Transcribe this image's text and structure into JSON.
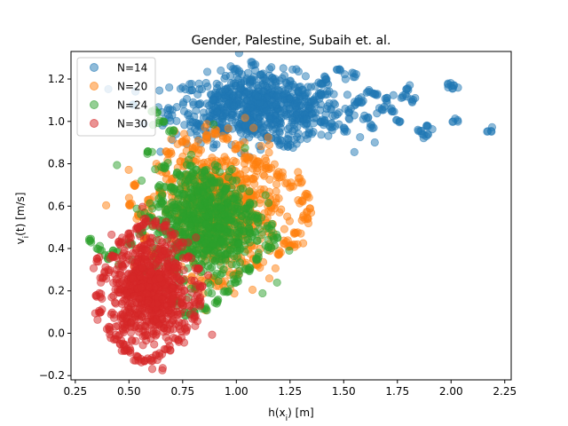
{
  "chart_data": {
    "type": "scatter",
    "title": "Gender, Palestine, Subaih et. al.",
    "xlabel": "h(x_i) [m]",
    "ylabel": "v_i(t) [m/s]",
    "xlim": [
      0.23,
      2.28
    ],
    "ylim": [
      -0.22,
      1.33
    ],
    "xticks": [
      0.25,
      0.5,
      0.75,
      1.0,
      1.25,
      1.5,
      1.75,
      2.0,
      2.25
    ],
    "xtick_labels": [
      "0.25",
      "0.50",
      "0.75",
      "1.00",
      "1.25",
      "1.50",
      "1.75",
      "2.00",
      "2.25"
    ],
    "yticks": [
      -0.2,
      0.0,
      0.2,
      0.4,
      0.6,
      0.8,
      1.0,
      1.2
    ],
    "ytick_labels": [
      "−0.2",
      "0.0",
      "0.2",
      "0.4",
      "0.6",
      "0.8",
      "1.0",
      "1.2"
    ],
    "grid": false,
    "legend_position": "top-left",
    "series": [
      {
        "name": "N=14",
        "color": "#1f77b4",
        "center": [
          1.1,
          1.06
        ],
        "spread": [
          0.2,
          0.08
        ],
        "points": [
          [
            0.83,
            0.98
          ],
          [
            0.9,
            1.1
          ],
          [
            0.95,
            1.15
          ],
          [
            1.0,
            1.25
          ],
          [
            1.05,
            1.2
          ],
          [
            1.12,
            1.22
          ],
          [
            1.18,
            1.2
          ],
          [
            1.25,
            1.18
          ],
          [
            1.3,
            1.14
          ],
          [
            1.38,
            1.12
          ],
          [
            1.42,
            1.2
          ],
          [
            1.48,
            1.24
          ],
          [
            1.55,
            1.22
          ],
          [
            1.58,
            1.1
          ],
          [
            1.6,
            1.02
          ],
          [
            1.63,
            0.98
          ],
          [
            1.7,
            1.1
          ],
          [
            1.72,
            1.05
          ],
          [
            1.75,
            1.0
          ],
          [
            1.8,
            1.16
          ],
          [
            1.82,
            1.1
          ],
          [
            1.86,
            0.95
          ],
          [
            1.88,
            0.93
          ],
          [
            1.9,
            0.97
          ],
          [
            2.0,
            1.17
          ],
          [
            2.02,
            1.16
          ],
          [
            2.02,
            1.01
          ],
          [
            2.18,
            0.96
          ],
          [
            1.45,
            0.98
          ],
          [
            1.5,
            0.96
          ],
          [
            1.35,
            0.95
          ],
          [
            1.4,
            1.0
          ],
          [
            1.2,
            0.9
          ],
          [
            1.25,
            0.88
          ],
          [
            1.15,
            0.92
          ],
          [
            1.05,
            0.98
          ],
          [
            1.1,
            1.12
          ],
          [
            1.0,
            1.08
          ],
          [
            0.92,
            1.05
          ],
          [
            0.88,
            1.0
          ],
          [
            1.28,
            1.08
          ],
          [
            1.65,
            1.12
          ],
          [
            1.68,
            1.06
          ],
          [
            1.78,
            1.12
          ],
          [
            1.52,
            1.05
          ],
          [
            1.62,
            1.14
          ],
          [
            1.32,
            1.0
          ],
          [
            1.08,
            1.27
          ],
          [
            1.2,
            1.12
          ],
          [
            1.55,
            1.08
          ]
        ]
      },
      {
        "name": "N=20",
        "color": "#ff7f0e",
        "center": [
          0.92,
          0.58
        ],
        "spread": [
          0.14,
          0.15
        ],
        "points": [
          [
            0.55,
            0.55
          ],
          [
            0.6,
            0.62
          ],
          [
            0.65,
            0.66
          ],
          [
            0.7,
            0.72
          ],
          [
            0.75,
            0.8
          ],
          [
            0.8,
            0.87
          ],
          [
            0.85,
            0.93
          ],
          [
            0.9,
            0.95
          ],
          [
            0.95,
            0.92
          ],
          [
            1.0,
            0.88
          ],
          [
            1.05,
            0.82
          ],
          [
            1.1,
            0.8
          ],
          [
            1.15,
            0.78
          ],
          [
            1.2,
            0.74
          ],
          [
            1.25,
            0.7
          ],
          [
            1.3,
            0.72
          ],
          [
            1.33,
            0.65
          ],
          [
            1.32,
            0.55
          ],
          [
            1.28,
            0.48
          ],
          [
            1.24,
            0.42
          ],
          [
            1.2,
            0.38
          ],
          [
            1.1,
            0.32
          ],
          [
            1.0,
            0.28
          ],
          [
            0.9,
            0.25
          ],
          [
            0.8,
            0.22
          ],
          [
            0.7,
            0.3
          ],
          [
            0.62,
            0.36
          ],
          [
            0.58,
            0.45
          ],
          [
            0.5,
            0.6
          ],
          [
            0.53,
            0.7
          ],
          [
            1.26,
            0.41
          ],
          [
            1.34,
            0.58
          ],
          [
            1.3,
            0.62
          ],
          [
            0.68,
            0.85
          ],
          [
            0.76,
            0.9
          ],
          [
            0.86,
            0.74
          ],
          [
            0.96,
            0.7
          ],
          [
            1.06,
            0.65
          ],
          [
            1.16,
            0.6
          ],
          [
            0.88,
            0.42
          ]
        ]
      },
      {
        "name": "N=24",
        "color": "#2ca02c",
        "center": [
          0.85,
          0.52
        ],
        "spread": [
          0.12,
          0.13
        ],
        "points": [
          [
            0.32,
            0.44
          ],
          [
            0.36,
            0.4
          ],
          [
            0.4,
            0.36
          ],
          [
            0.44,
            0.38
          ],
          [
            0.5,
            0.42
          ],
          [
            0.55,
            0.48
          ],
          [
            0.6,
            0.55
          ],
          [
            0.65,
            0.62
          ],
          [
            0.7,
            0.68
          ],
          [
            0.75,
            0.75
          ],
          [
            0.8,
            0.78
          ],
          [
            0.85,
            0.76
          ],
          [
            0.9,
            0.72
          ],
          [
            0.95,
            0.68
          ],
          [
            1.0,
            0.64
          ],
          [
            1.05,
            0.6
          ],
          [
            1.1,
            0.55
          ],
          [
            1.15,
            0.5
          ],
          [
            1.18,
            0.45
          ],
          [
            1.15,
            0.4
          ],
          [
            1.1,
            0.35
          ],
          [
            1.05,
            0.3
          ],
          [
            1.0,
            0.25
          ],
          [
            0.95,
            0.2
          ],
          [
            0.9,
            0.15
          ],
          [
            0.85,
            0.12
          ],
          [
            0.8,
            0.1
          ],
          [
            0.77,
            0.09
          ],
          [
            0.71,
            0.15
          ],
          [
            0.65,
            0.25
          ],
          [
            0.58,
            0.3
          ],
          [
            0.53,
            0.28
          ],
          [
            0.6,
            0.85
          ],
          [
            0.62,
            1.05
          ],
          [
            0.65,
            1.0
          ],
          [
            0.7,
            0.95
          ],
          [
            0.66,
            0.78
          ],
          [
            0.72,
            0.6
          ],
          [
            0.92,
            0.5
          ],
          [
            1.02,
            0.42
          ]
        ]
      },
      {
        "name": "N=30",
        "color": "#d62728",
        "center": [
          0.6,
          0.2
        ],
        "spread": [
          0.09,
          0.12
        ],
        "points": [
          [
            0.38,
            0.25
          ],
          [
            0.36,
            0.18
          ],
          [
            0.37,
            0.1
          ],
          [
            0.4,
            0.02
          ],
          [
            0.43,
            -0.02
          ],
          [
            0.47,
            -0.06
          ],
          [
            0.5,
            -0.08
          ],
          [
            0.53,
            -0.12
          ],
          [
            0.56,
            -0.13
          ],
          [
            0.6,
            -0.12
          ],
          [
            0.64,
            -0.1
          ],
          [
            0.68,
            -0.07
          ],
          [
            0.72,
            -0.03
          ],
          [
            0.76,
            0.02
          ],
          [
            0.8,
            0.08
          ],
          [
            0.82,
            0.15
          ],
          [
            0.83,
            0.22
          ],
          [
            0.82,
            0.3
          ],
          [
            0.78,
            0.36
          ],
          [
            0.74,
            0.42
          ],
          [
            0.7,
            0.47
          ],
          [
            0.66,
            0.5
          ],
          [
            0.62,
            0.52
          ],
          [
            0.58,
            0.53
          ],
          [
            0.54,
            0.5
          ],
          [
            0.5,
            0.46
          ],
          [
            0.46,
            0.42
          ],
          [
            0.42,
            0.36
          ],
          [
            0.4,
            0.3
          ],
          [
            0.35,
            0.35
          ],
          [
            0.55,
            0.3
          ],
          [
            0.6,
            0.15
          ],
          [
            0.65,
            0.25
          ],
          [
            0.7,
            0.1
          ],
          [
            0.5,
            0.05
          ],
          [
            0.45,
            0.2
          ],
          [
            0.72,
            0.32
          ],
          [
            0.57,
            0.4
          ],
          [
            0.62,
            0.0
          ],
          [
            0.66,
            0.38
          ]
        ]
      }
    ]
  }
}
